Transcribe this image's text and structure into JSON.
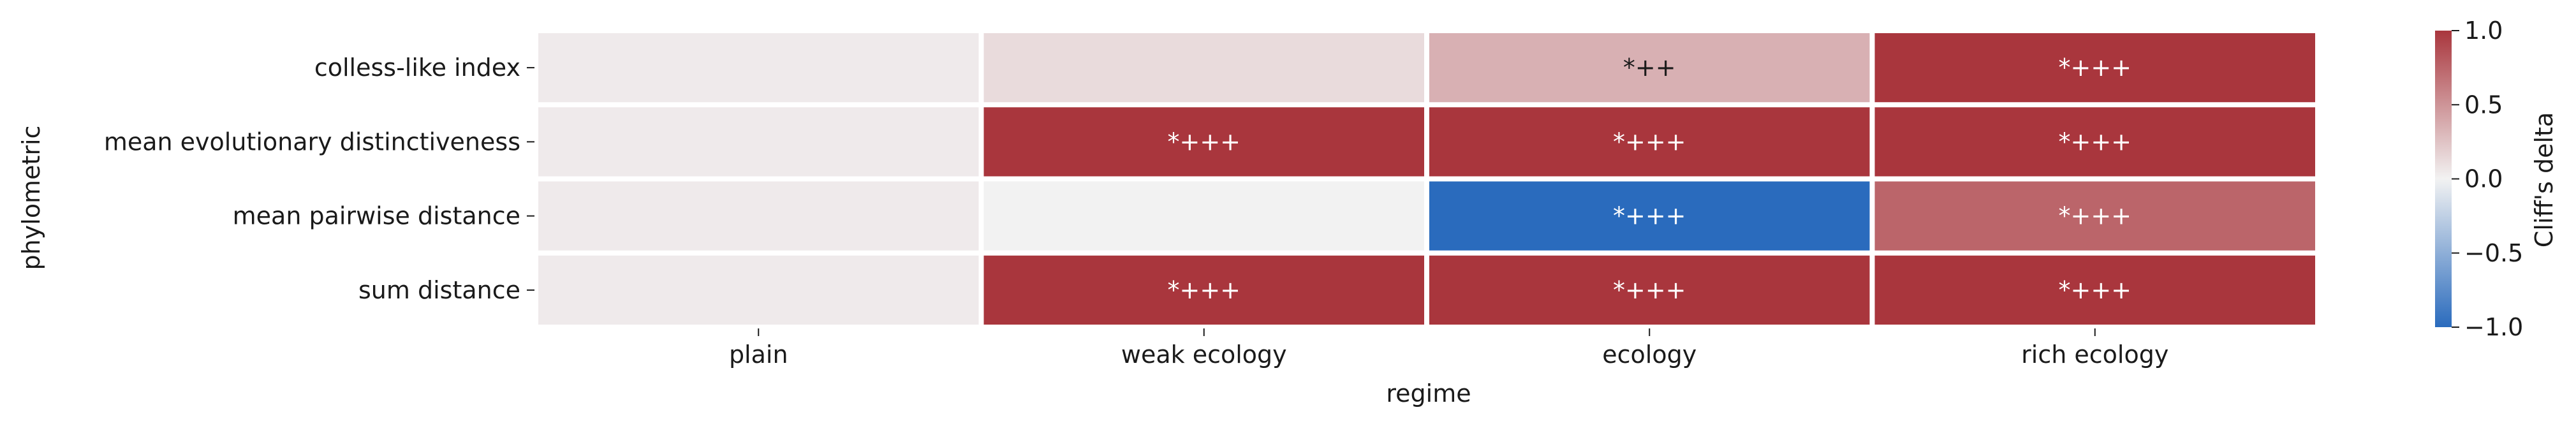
{
  "chart_data": {
    "type": "heatmap",
    "title": "",
    "xlabel": "regime",
    "ylabel": "phylometric",
    "x_categories": [
      "plain",
      "weak ecology",
      "ecology",
      "rich ecology"
    ],
    "y_categories": [
      "colless-like index",
      "mean evolutionary distinctiveness",
      "mean pairwise distance",
      "sum distance"
    ],
    "values": [
      [
        0.04,
        0.12,
        0.35,
        1.0
      ],
      [
        0.04,
        1.0,
        1.0,
        1.0
      ],
      [
        0.04,
        0.0,
        -1.0,
        0.75
      ],
      [
        0.04,
        1.0,
        1.0,
        1.0
      ]
    ],
    "annotations": [
      [
        "",
        "",
        "*++",
        "*+++"
      ],
      [
        "",
        "*+++",
        "*+++",
        "*+++"
      ],
      [
        "",
        "",
        "*+++",
        "*+++"
      ],
      [
        "",
        "*+++",
        "*+++",
        "*+++"
      ]
    ],
    "colorbar": {
      "label": "Cliff's delta",
      "range": [
        -1.0,
        1.0
      ],
      "ticks": [
        "1.0",
        "0.5",
        "0.0",
        "−0.5",
        "−1.0"
      ],
      "tick_values": [
        1.0,
        0.5,
        0.0,
        -0.5,
        -1.0
      ],
      "colors": {
        "low": "#2a6bbd",
        "mid": "#f2f2f2",
        "high": "#a9363d"
      }
    },
    "grid": false
  }
}
